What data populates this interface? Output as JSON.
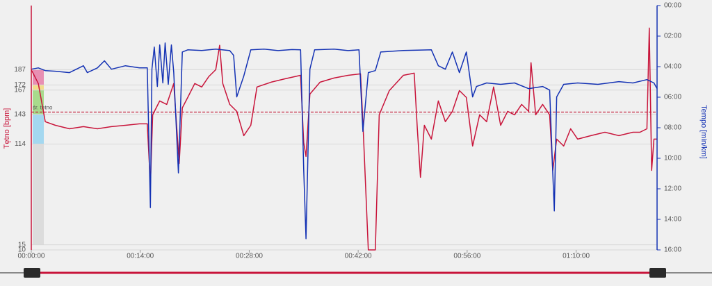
{
  "chart_data": {
    "type": "line",
    "y_label": "Tętno [bpm]",
    "y2_label": "Tempo [min/km]",
    "average": 145.4,
    "average_label": "śr. tętno",
    "average_color": "#c0102e",
    "xlim": [
      0,
      80.4
    ],
    "xticks": [
      {
        "value": 0,
        "label": "00:00:00"
      },
      {
        "value": 14,
        "label": "00:14:00"
      },
      {
        "value": 28,
        "label": "00:28:00"
      },
      {
        "value": 42,
        "label": "00:42:00"
      },
      {
        "value": 56,
        "label": "00:56:00"
      },
      {
        "value": 70,
        "label": "01:10:00"
      }
    ],
    "ylim": [
      10,
      250
    ],
    "yticks": [
      187,
      172,
      167,
      143,
      114,
      15,
      10
    ],
    "y2lim": [
      16,
      0
    ],
    "y2ticks": [
      {
        "value": 0,
        "label": "00:00"
      },
      {
        "value": 2,
        "label": "02:00"
      },
      {
        "value": 4,
        "label": "04:00"
      },
      {
        "value": 6,
        "label": "06:00"
      },
      {
        "value": 8,
        "label": "08:00"
      },
      {
        "value": 10,
        "label": "10:00"
      },
      {
        "value": 12,
        "label": "12:00"
      },
      {
        "value": 14,
        "label": "14:00"
      },
      {
        "value": 16,
        "label": "16:00"
      }
    ],
    "grid": true,
    "hr_zones": [
      {
        "from": 172,
        "to": 187,
        "color": "#e88fb3"
      },
      {
        "from": 167,
        "to": 172,
        "color": "#f2dc8c"
      },
      {
        "from": 143,
        "to": 167,
        "color": "#a8da8c"
      },
      {
        "from": 114,
        "to": 143,
        "color": "#a4d8f0"
      },
      {
        "from": 15,
        "to": 114,
        "color": "#dcdcdc"
      }
    ],
    "series": [
      {
        "name": "Tętno",
        "color": "#c8143a",
        "axis": "y",
        "x": [
          0,
          0.9,
          1.8,
          3.1,
          4.9,
          6.7,
          8.5,
          10.3,
          12.1,
          13.9,
          14.9,
          15.3,
          15.6,
          16.5,
          17.4,
          18.3,
          19.0,
          19.4,
          20.1,
          21.0,
          21.9,
          22.8,
          23.7,
          24.2,
          24.6,
          25.5,
          26.4,
          27.3,
          28.2,
          29.0,
          30.8,
          32.6,
          34.6,
          35.0,
          35.3,
          35.8,
          37.1,
          38.9,
          40.7,
          42.3,
          42.6,
          43.3,
          44.2,
          44.7,
          46.0,
          47.8,
          49.2,
          49.6,
          50.0,
          50.5,
          51.4,
          52.3,
          53.2,
          54.1,
          55.0,
          55.9,
          56.7,
          57.6,
          58.5,
          59.4,
          60.3,
          61.2,
          62.1,
          63.0,
          63.9,
          64.2,
          64.8,
          65.7,
          66.6,
          67.0,
          67.5,
          68.4,
          69.3,
          70.2,
          71.9,
          73.7,
          75.5,
          77.3,
          78.2,
          79.1,
          79.4,
          79.7,
          80.0,
          80.4
        ],
        "values": [
          187,
          173.4,
          135.9,
          132.4,
          129.0,
          131.1,
          129.0,
          131.1,
          132.4,
          133.8,
          133.8,
          74.5,
          142.7,
          156.3,
          152.9,
          173.4,
          94.9,
          149.5,
          159.7,
          173.4,
          170.0,
          180.2,
          187.0,
          210.9,
          173.4,
          152.9,
          146.1,
          122.2,
          132.4,
          170.0,
          174.7,
          178.1,
          181.5,
          115.4,
          101.8,
          163.1,
          174.7,
          178.8,
          181.5,
          182.9,
          135.9,
          10,
          10,
          142.7,
          166.5,
          181.5,
          183.6,
          129.0,
          81.3,
          132.4,
          118.8,
          156.3,
          135.9,
          146.1,
          166.5,
          159.7,
          112.0,
          142.7,
          135.9,
          170.0,
          132.4,
          146.1,
          142.7,
          152.9,
          146.1,
          193.8,
          142.7,
          152.9,
          142.7,
          88.1,
          118.8,
          112.0,
          129.0,
          118.8,
          122.2,
          125.6,
          122.2,
          125.6,
          125.6,
          129.0,
          227.9,
          88.1,
          118.8,
          118.8
        ]
      },
      {
        "name": "Tempo",
        "color": "#1432b4",
        "axis": "y2",
        "x": [
          0,
          0.9,
          1.8,
          3.1,
          4.9,
          6.7,
          7.2,
          8.5,
          9.4,
          10.3,
          12.1,
          13.9,
          14.9,
          15.3,
          15.5,
          15.8,
          16.2,
          16.5,
          16.9,
          17.2,
          17.6,
          18.0,
          18.3,
          18.9,
          19.4,
          20.1,
          21.9,
          23.7,
          25.5,
          26.0,
          26.4,
          27.3,
          28.2,
          29.9,
          31.7,
          33.5,
          34.6,
          35.0,
          35.3,
          35.8,
          36.4,
          38.9,
          40.7,
          42.1,
          42.6,
          43.3,
          44.2,
          44.9,
          47.8,
          51.4,
          52.3,
          53.2,
          54.1,
          55.0,
          55.9,
          56.7,
          57.2,
          58.5,
          60.3,
          62.1,
          63.9,
          65.7,
          66.6,
          67.0,
          67.2,
          67.5,
          68.4,
          70.2,
          72.8,
          75.5,
          77.3,
          79.1,
          80.0,
          80.4
        ],
        "values": [
          4.17,
          4.08,
          4.26,
          4.3,
          4.39,
          3.94,
          4.39,
          4.08,
          3.62,
          4.17,
          3.94,
          4.08,
          4.08,
          13.23,
          4.17,
          2.72,
          5.3,
          2.58,
          5.07,
          2.45,
          5.16,
          2.58,
          4.39,
          10.96,
          3.04,
          2.9,
          2.94,
          2.85,
          2.95,
          3.26,
          5.98,
          4.62,
          2.9,
          2.85,
          2.95,
          2.88,
          2.9,
          10.74,
          15.27,
          4.17,
          2.9,
          2.85,
          2.95,
          2.9,
          8.24,
          4.39,
          4.26,
          3.04,
          2.94,
          2.9,
          3.94,
          4.17,
          3.04,
          4.39,
          3.04,
          5.98,
          5.3,
          5.07,
          5.16,
          5.07,
          5.44,
          5.3,
          5.53,
          10.96,
          13.45,
          5.98,
          5.16,
          5.07,
          5.16,
          4.98,
          5.07,
          4.85,
          5.07,
          5.44
        ]
      }
    ]
  }
}
